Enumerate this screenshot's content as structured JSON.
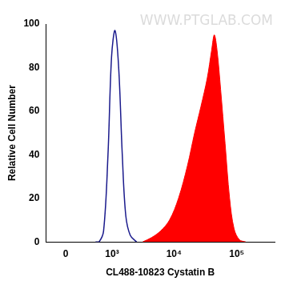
{
  "chart_data": {
    "type": "line",
    "x_label": "CL488-10823 Cystatin B",
    "y_label": "Relative Cell Number",
    "annotations": [
      "WWW.PTGLAB.COM"
    ],
    "series": [
      {
        "type": "line",
        "color": "#1a1a8c",
        "x": [
          500,
          585,
          710,
          850,
          980,
          1120,
          1290,
          1480,
          1690,
          2000,
          2530
        ],
        "values": [
          0,
          0,
          5,
          40,
          85,
          97,
          80,
          40,
          12,
          3,
          0
        ]
      },
      {
        "type": "area",
        "color": "#ff0000",
        "x": [
          3160,
          4390,
          6100,
          8480,
          11800,
          16400,
          21300,
          26800,
          33800,
          39800,
          43900,
          48500,
          55300,
          65200,
          76900,
          90600,
          110000,
          139000
        ],
        "values": [
          0,
          2,
          5,
          10,
          20,
          35,
          50,
          62,
          75,
          88,
          95,
          88,
          70,
          45,
          20,
          6,
          1,
          0
        ]
      }
    ],
    "xlim": [
      -300,
      400000
    ],
    "xticks": [
      0,
      {
        "value": 1000,
        "label": "10³"
      },
      {
        "value": 10000,
        "label": "10⁴"
      },
      {
        "value": 100000,
        "label": "10⁵"
      }
    ],
    "ylim": [
      0,
      100
    ],
    "yticks": [
      0,
      20,
      40,
      60,
      80,
      100
    ],
    "grid": false
  }
}
